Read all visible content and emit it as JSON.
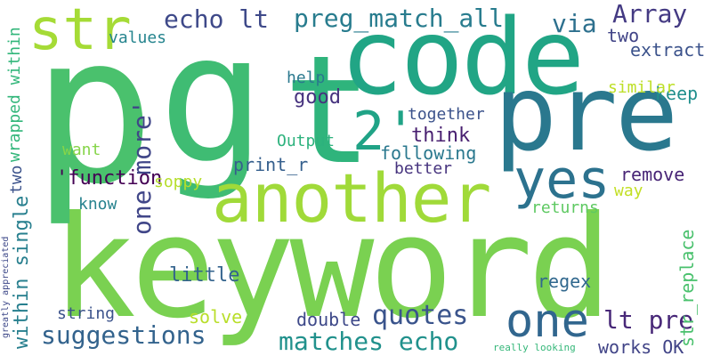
{
  "words": {
    "keyword": {
      "text": "keyword",
      "color": "#7ad151"
    },
    "code": {
      "text": "code",
      "color": "#21a585"
    },
    "g": {
      "text": "g",
      "color": "#3fbc73"
    },
    "p": {
      "text": "p",
      "color": "#4ac16d"
    },
    "t": {
      "text": "t",
      "color": "#2fb47c"
    },
    "pre": {
      "text": "pre",
      "color": "#2a788e"
    },
    "another": {
      "text": "another",
      "color": "#a0da39"
    },
    "str": {
      "text": "str",
      "color": "#a5db36"
    },
    "yes": {
      "text": "yes",
      "color": "#2c728e"
    },
    "two2": {
      "text": "2'",
      "color": "#20a386"
    },
    "one": {
      "text": "one",
      "color": "#31668e"
    },
    "echolt": {
      "text": "echo lt",
      "color": "#3e4989"
    },
    "pregm": {
      "text": "preg_match_all",
      "color": "#287c8e"
    },
    "via": {
      "text": "via",
      "color": "#2d708e"
    },
    "array": {
      "text": "Array",
      "color": "#443a83"
    },
    "two": {
      "text": "two",
      "color": "#414487"
    },
    "extract": {
      "text": "extract",
      "color": "#3b528b"
    },
    "keep": {
      "text": "keep",
      "color": "#218f8d"
    },
    "similar": {
      "text": "similar",
      "color": "#bddf26"
    },
    "values": {
      "text": "values",
      "color": "#25848e"
    },
    "help": {
      "text": "help",
      "color": "#2a788e"
    },
    "good": {
      "text": "good",
      "color": "#46327e"
    },
    "together": {
      "text": "together",
      "color": "#3b528b"
    },
    "think": {
      "text": "think",
      "color": "#481f70"
    },
    "output": {
      "text": "Output",
      "color": "#2db27d"
    },
    "following": {
      "text": "following",
      "color": "#2a788e"
    },
    "better": {
      "text": "better",
      "color": "#46337e"
    },
    "want": {
      "text": "want",
      "color": "#86d549"
    },
    "printr": {
      "text": "print_r",
      "color": "#355f8d"
    },
    "function": {
      "text": "'function",
      "color": "#440154"
    },
    "soppy": {
      "text": "soppy",
      "color": "#b5de2b"
    },
    "remove": {
      "text": "remove",
      "color": "#482576"
    },
    "way": {
      "text": "way",
      "color": "#c2df23"
    },
    "know": {
      "text": "know",
      "color": "#26828e"
    },
    "returns": {
      "text": "returns",
      "color": "#5ec962"
    },
    "little": {
      "text": "little",
      "color": "#33638d"
    },
    "regex": {
      "text": "regex",
      "color": "#31688e"
    },
    "string": {
      "text": "string",
      "color": "#3b528b"
    },
    "solve": {
      "text": "solve",
      "color": "#b8de29"
    },
    "double": {
      "text": "double",
      "color": "#3e4989"
    },
    "quotes": {
      "text": "quotes",
      "color": "#3a548c"
    },
    "ltpre": {
      "text": "lt pre",
      "color": "#482878"
    },
    "suggest": {
      "text": "suggestions",
      "color": "#33638d"
    },
    "matches": {
      "text": "matches echo",
      "color": "#21918c"
    },
    "works": {
      "text": "works OK",
      "color": "#414487"
    },
    "really": {
      "text": "really looking",
      "color": "#35b779"
    },
    "onemore": {
      "text": "one more'",
      "color": "#404688"
    },
    "wrapped": {
      "text": "wrapped within",
      "color": "#32b67a"
    },
    "within": {
      "text": "within single",
      "color": "#277f8e"
    },
    "two3": {
      "text": "two",
      "color": "#3b528b"
    },
    "strrep": {
      "text": "str_replace",
      "color": "#4ac16d"
    },
    "greatly": {
      "text": "greatly appreciated",
      "color": "#3e4989"
    }
  }
}
